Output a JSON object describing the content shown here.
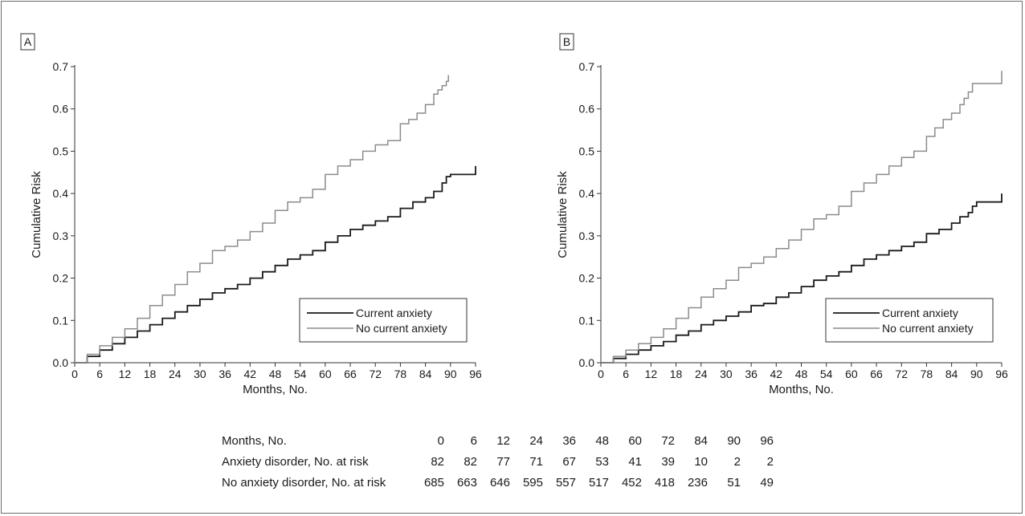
{
  "chart_data": [
    {
      "panel": "A",
      "type": "line",
      "step": true,
      "xlabel": "Months, No.",
      "ylabel": "Cumulative Risk",
      "xlim": [
        0,
        96
      ],
      "ylim": [
        0,
        0.7
      ],
      "xticks": [
        0,
        6,
        12,
        18,
        24,
        30,
        36,
        42,
        48,
        54,
        60,
        66,
        72,
        78,
        84,
        90,
        96
      ],
      "yticks": [
        "0.0",
        "0.1",
        "0.2",
        "0.3",
        "0.4",
        "0.5",
        "0.6",
        "0.7"
      ],
      "legend_position": "bottom-right",
      "series": [
        {
          "name": "Current anxiety",
          "color": "#1a1a1a",
          "x": [
            0,
            3,
            6,
            9,
            12,
            15,
            18,
            21,
            24,
            27,
            30,
            33,
            36,
            39,
            42,
            45,
            48,
            51,
            54,
            57,
            60,
            63,
            66,
            69,
            72,
            75,
            78,
            81,
            84,
            86,
            88,
            89,
            90,
            92,
            94,
            96
          ],
          "y": [
            0,
            0.015,
            0.03,
            0.045,
            0.06,
            0.075,
            0.09,
            0.105,
            0.12,
            0.135,
            0.15,
            0.165,
            0.175,
            0.185,
            0.2,
            0.215,
            0.23,
            0.245,
            0.255,
            0.265,
            0.285,
            0.3,
            0.315,
            0.325,
            0.335,
            0.345,
            0.365,
            0.38,
            0.39,
            0.405,
            0.425,
            0.44,
            0.445,
            0.445,
            0.445,
            0.465
          ]
        },
        {
          "name": "No current anxiety",
          "color": "#8c8c8c",
          "x": [
            0,
            3,
            6,
            9,
            12,
            15,
            18,
            21,
            24,
            27,
            30,
            33,
            36,
            39,
            42,
            45,
            48,
            51,
            54,
            57,
            60,
            63,
            66,
            69,
            72,
            75,
            78,
            80,
            82,
            84,
            86,
            87,
            88,
            89,
            89.5
          ],
          "y": [
            0,
            0.02,
            0.04,
            0.06,
            0.08,
            0.105,
            0.135,
            0.16,
            0.185,
            0.215,
            0.235,
            0.265,
            0.275,
            0.29,
            0.31,
            0.33,
            0.36,
            0.38,
            0.39,
            0.41,
            0.445,
            0.465,
            0.48,
            0.5,
            0.515,
            0.525,
            0.565,
            0.575,
            0.59,
            0.61,
            0.635,
            0.645,
            0.655,
            0.665,
            0.68
          ]
        }
      ]
    },
    {
      "panel": "B",
      "type": "line",
      "step": true,
      "xlabel": "Months, No.",
      "ylabel": "Cumulative Risk",
      "xlim": [
        0,
        96
      ],
      "ylim": [
        0,
        0.7
      ],
      "xticks": [
        0,
        6,
        12,
        18,
        24,
        30,
        36,
        42,
        48,
        54,
        60,
        66,
        72,
        78,
        84,
        90,
        96
      ],
      "yticks": [
        "0.0",
        "0.1",
        "0.2",
        "0.3",
        "0.4",
        "0.5",
        "0.6",
        "0.7"
      ],
      "legend_position": "bottom-right",
      "series": [
        {
          "name": "Current anxiety",
          "color": "#1a1a1a",
          "x": [
            0,
            3,
            6,
            9,
            12,
            15,
            18,
            21,
            24,
            27,
            30,
            33,
            36,
            39,
            42,
            45,
            48,
            51,
            54,
            57,
            60,
            63,
            66,
            69,
            72,
            75,
            78,
            81,
            84,
            86,
            88,
            89,
            90,
            92,
            94,
            96
          ],
          "y": [
            0,
            0.01,
            0.02,
            0.03,
            0.04,
            0.05,
            0.065,
            0.075,
            0.09,
            0.1,
            0.11,
            0.12,
            0.135,
            0.14,
            0.155,
            0.165,
            0.18,
            0.195,
            0.205,
            0.215,
            0.23,
            0.245,
            0.255,
            0.265,
            0.275,
            0.285,
            0.305,
            0.315,
            0.33,
            0.345,
            0.355,
            0.37,
            0.38,
            0.38,
            0.38,
            0.4
          ]
        },
        {
          "name": "No current anxiety",
          "color": "#8c8c8c",
          "x": [
            0,
            3,
            6,
            9,
            12,
            15,
            18,
            21,
            24,
            27,
            30,
            33,
            36,
            39,
            42,
            45,
            48,
            51,
            54,
            57,
            60,
            63,
            66,
            69,
            72,
            75,
            78,
            80,
            82,
            84,
            86,
            87,
            88,
            89,
            90,
            92,
            94,
            96
          ],
          "y": [
            0,
            0.015,
            0.03,
            0.045,
            0.06,
            0.08,
            0.105,
            0.13,
            0.155,
            0.175,
            0.195,
            0.225,
            0.235,
            0.25,
            0.27,
            0.29,
            0.315,
            0.34,
            0.35,
            0.37,
            0.405,
            0.425,
            0.445,
            0.465,
            0.485,
            0.5,
            0.535,
            0.555,
            0.575,
            0.59,
            0.61,
            0.625,
            0.64,
            0.66,
            0.66,
            0.66,
            0.66,
            0.69
          ]
        }
      ]
    },
    {
      "type": "table",
      "rows": [
        {
          "label": "Months, No.",
          "values": [
            "0",
            "6",
            "12",
            "24",
            "36",
            "48",
            "60",
            "72",
            "84",
            "90",
            "96"
          ]
        },
        {
          "label": "Anxiety disorder, No. at risk",
          "values": [
            "82",
            "82",
            "77",
            "71",
            "67",
            "53",
            "41",
            "39",
            "10",
            "2",
            "2"
          ]
        },
        {
          "label": "No anxiety disorder, No. at risk",
          "values": [
            "685",
            "663",
            "646",
            "595",
            "557",
            "517",
            "452",
            "418",
            "236",
            "51",
            "49"
          ]
        }
      ]
    }
  ]
}
